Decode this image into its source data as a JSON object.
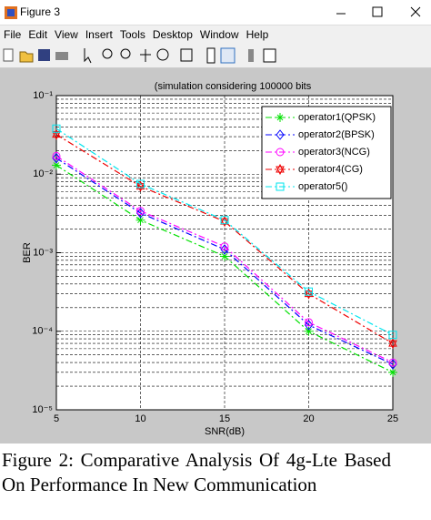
{
  "window": {
    "title": "Figure 3",
    "menu": [
      "File",
      "Edit",
      "View",
      "Insert",
      "Tools",
      "Desktop",
      "Window",
      "Help"
    ]
  },
  "chart_data": {
    "type": "line",
    "title": "(simulation considering 100000 bits",
    "xlabel": "SNR(dB)",
    "ylabel": "BER",
    "x": [
      5,
      10,
      15,
      20,
      25
    ],
    "xlim": [
      5,
      25
    ],
    "xticks": [
      5,
      10,
      15,
      20,
      25
    ],
    "ylim": [
      1e-05,
      0.1
    ],
    "log_y": true,
    "yticks": [
      {
        "value": 1e-05,
        "label": "10⁻⁵"
      },
      {
        "value": 0.0001,
        "label": "10⁻⁴"
      },
      {
        "value": 0.001,
        "label": "10⁻³"
      },
      {
        "value": 0.01,
        "label": "10⁻²"
      },
      {
        "value": 0.1,
        "label": "10⁻¹"
      }
    ],
    "grid": true,
    "legend": "northeast",
    "series": [
      {
        "name": "operator1(QPSK)",
        "color": "#00e000",
        "marker": "star",
        "values": [
          0.013,
          0.0026,
          0.0009,
          0.0001,
          3e-05
        ]
      },
      {
        "name": "operator2(BPSK)",
        "color": "#0000ff",
        "marker": "diamond",
        "values": [
          0.016,
          0.0032,
          0.0011,
          0.00012,
          3.8e-05
        ]
      },
      {
        "name": "operator3(NCG)",
        "color": "#ff00ff",
        "marker": "circle",
        "values": [
          0.017,
          0.0034,
          0.0012,
          0.00013,
          4e-05
        ]
      },
      {
        "name": "operator4(CG)",
        "color": "#ee0000",
        "marker": "hexagram",
        "values": [
          0.032,
          0.007,
          0.0025,
          0.0003,
          7e-05
        ]
      },
      {
        "name": "operator5()",
        "color": "#00e5ee",
        "marker": "square",
        "values": [
          0.038,
          0.0075,
          0.0026,
          0.00032,
          9e-05
        ]
      }
    ]
  },
  "caption": "Figure 2: Comparative Analysis Of 4g-Lte Based On Performance In New Communication"
}
